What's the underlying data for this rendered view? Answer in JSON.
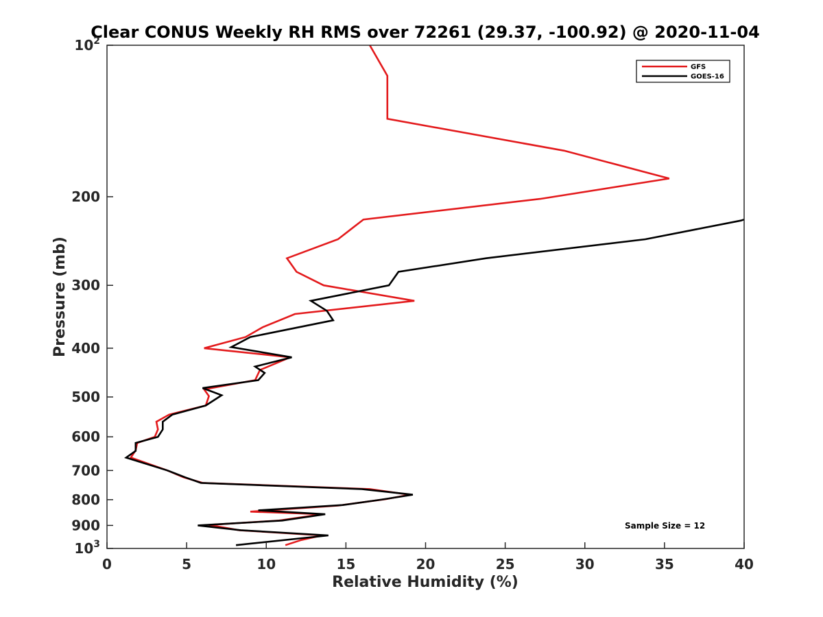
{
  "chart_data": {
    "type": "line",
    "title": "Clear CONUS Weekly RH RMS over 72261 (29.37, -100.92) @ 2020-11-04",
    "xlabel": "Relative Humidity (%)",
    "ylabel": "Pressure (mb)",
    "xlim": [
      0,
      40
    ],
    "ylim": [
      100,
      1000
    ],
    "yscale": "log",
    "y_reversed": true,
    "grid": false,
    "legend_position": "top-right",
    "x_ticks": [
      {
        "value": 0,
        "label": "0"
      },
      {
        "value": 5,
        "label": "5"
      },
      {
        "value": 10,
        "label": "10"
      },
      {
        "value": 15,
        "label": "15"
      },
      {
        "value": 20,
        "label": "20"
      },
      {
        "value": 25,
        "label": "25"
      },
      {
        "value": 30,
        "label": "30"
      },
      {
        "value": 35,
        "label": "35"
      },
      {
        "value": 40,
        "label": "40"
      }
    ],
    "y_ticks": [
      {
        "value": 100,
        "label": "10",
        "sup": "2"
      },
      {
        "value": 200,
        "label": "200"
      },
      {
        "value": 300,
        "label": "300"
      },
      {
        "value": 400,
        "label": "400"
      },
      {
        "value": 500,
        "label": "500"
      },
      {
        "value": 600,
        "label": "600"
      },
      {
        "value": 700,
        "label": "700"
      },
      {
        "value": 800,
        "label": "800"
      },
      {
        "value": 900,
        "label": "900"
      },
      {
        "value": 1000,
        "label": "10",
        "sup": "3"
      }
    ],
    "annotation": "Sample Size = 12",
    "series": [
      {
        "name": "GFS",
        "color": "#e31a1c",
        "points": [
          {
            "x": 16.5,
            "y": 100
          },
          {
            "x": 17.6,
            "y": 115
          },
          {
            "x": 17.6,
            "y": 140
          },
          {
            "x": 28.7,
            "y": 162
          },
          {
            "x": 35.3,
            "y": 184
          },
          {
            "x": 27.2,
            "y": 202
          },
          {
            "x": 16.1,
            "y": 222
          },
          {
            "x": 14.5,
            "y": 243
          },
          {
            "x": 11.3,
            "y": 265
          },
          {
            "x": 11.9,
            "y": 282
          },
          {
            "x": 13.6,
            "y": 300
          },
          {
            "x": 19.3,
            "y": 322
          },
          {
            "x": 11.8,
            "y": 342
          },
          {
            "x": 9.8,
            "y": 363
          },
          {
            "x": 8.7,
            "y": 380
          },
          {
            "x": 6.1,
            "y": 400
          },
          {
            "x": 11.5,
            "y": 417
          },
          {
            "x": 9.6,
            "y": 442
          },
          {
            "x": 9.3,
            "y": 463
          },
          {
            "x": 6.1,
            "y": 483
          },
          {
            "x": 6.4,
            "y": 498
          },
          {
            "x": 6.2,
            "y": 520
          },
          {
            "x": 3.9,
            "y": 542
          },
          {
            "x": 3.1,
            "y": 560
          },
          {
            "x": 3.2,
            "y": 580
          },
          {
            "x": 3.0,
            "y": 600
          },
          {
            "x": 1.9,
            "y": 617
          },
          {
            "x": 1.8,
            "y": 638
          },
          {
            "x": 1.5,
            "y": 660
          },
          {
            "x": 3.8,
            "y": 700
          },
          {
            "x": 4.8,
            "y": 722
          },
          {
            "x": 6.0,
            "y": 741
          },
          {
            "x": 16.5,
            "y": 762
          },
          {
            "x": 19.0,
            "y": 782
          },
          {
            "x": 17.5,
            "y": 798
          },
          {
            "x": 14.5,
            "y": 822
          },
          {
            "x": 9.0,
            "y": 845
          },
          {
            "x": 13.5,
            "y": 855
          },
          {
            "x": 10.8,
            "y": 880
          },
          {
            "x": 6.4,
            "y": 898
          },
          {
            "x": 8.3,
            "y": 920
          },
          {
            "x": 13.5,
            "y": 942
          },
          {
            "x": 12.2,
            "y": 962
          },
          {
            "x": 11.2,
            "y": 985
          }
        ]
      },
      {
        "name": "GOES-16",
        "color": "#000000",
        "points": [
          {
            "x": 40.0,
            "y": 222
          },
          {
            "x": 39.8,
            "y": 223
          },
          {
            "x": 33.8,
            "y": 243
          },
          {
            "x": 23.8,
            "y": 265
          },
          {
            "x": 18.3,
            "y": 282
          },
          {
            "x": 17.7,
            "y": 300
          },
          {
            "x": 12.8,
            "y": 322
          },
          {
            "x": 13.8,
            "y": 337
          },
          {
            "x": 14.2,
            "y": 352
          },
          {
            "x": 9.0,
            "y": 380
          },
          {
            "x": 7.8,
            "y": 398
          },
          {
            "x": 11.6,
            "y": 417
          },
          {
            "x": 9.3,
            "y": 435
          },
          {
            "x": 9.9,
            "y": 448
          },
          {
            "x": 9.5,
            "y": 463
          },
          {
            "x": 6.0,
            "y": 480
          },
          {
            "x": 7.2,
            "y": 496
          },
          {
            "x": 6.2,
            "y": 520
          },
          {
            "x": 4.1,
            "y": 542
          },
          {
            "x": 3.5,
            "y": 560
          },
          {
            "x": 3.5,
            "y": 580
          },
          {
            "x": 3.2,
            "y": 600
          },
          {
            "x": 1.8,
            "y": 617
          },
          {
            "x": 1.8,
            "y": 640
          },
          {
            "x": 1.2,
            "y": 660
          },
          {
            "x": 3.8,
            "y": 700
          },
          {
            "x": 4.9,
            "y": 722
          },
          {
            "x": 5.9,
            "y": 741
          },
          {
            "x": 16.0,
            "y": 762
          },
          {
            "x": 19.2,
            "y": 782
          },
          {
            "x": 17.2,
            "y": 800
          },
          {
            "x": 14.8,
            "y": 820
          },
          {
            "x": 9.5,
            "y": 840
          },
          {
            "x": 13.7,
            "y": 855
          },
          {
            "x": 11.0,
            "y": 880
          },
          {
            "x": 5.7,
            "y": 900
          },
          {
            "x": 8.4,
            "y": 920
          },
          {
            "x": 13.9,
            "y": 942
          },
          {
            "x": 8.1,
            "y": 985
          }
        ]
      }
    ]
  }
}
